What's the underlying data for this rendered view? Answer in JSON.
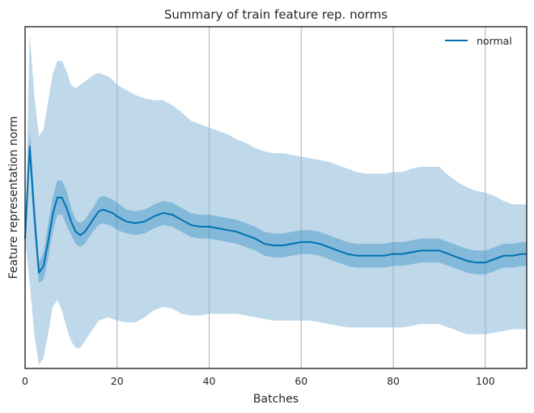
{
  "chart_data": {
    "type": "line",
    "title": "Summary of train feature rep. norms",
    "xlabel": "Batches",
    "ylabel": "Feature representation norm",
    "xlim": [
      0,
      109
    ],
    "ylim": [
      0,
      1
    ],
    "x_ticks": [
      0,
      20,
      40,
      60,
      80,
      100
    ],
    "y_ticks": [],
    "grid": "vertical",
    "legend_position": "top-right",
    "colors": {
      "line": "#0072b2",
      "inner_band": "#0072b2",
      "outer_band": "#7fb3d5",
      "grid": "#b0b0b0",
      "frame": "#262626"
    },
    "series": [
      {
        "name": "normal",
        "x": [
          0,
          1,
          2,
          3,
          4,
          5,
          6,
          7,
          8,
          9,
          10,
          11,
          12,
          13,
          14,
          15,
          16,
          17,
          18,
          19,
          20,
          22,
          24,
          26,
          28,
          30,
          32,
          34,
          36,
          38,
          40,
          42,
          44,
          46,
          48,
          50,
          52,
          54,
          56,
          58,
          60,
          62,
          64,
          66,
          68,
          70,
          72,
          74,
          76,
          78,
          80,
          82,
          84,
          86,
          88,
          90,
          92,
          94,
          96,
          98,
          100,
          102,
          104,
          106,
          108,
          109
        ],
        "mean": [
          0.38,
          0.65,
          0.45,
          0.28,
          0.3,
          0.37,
          0.45,
          0.5,
          0.5,
          0.47,
          0.43,
          0.4,
          0.39,
          0.4,
          0.42,
          0.44,
          0.46,
          0.465,
          0.46,
          0.455,
          0.445,
          0.43,
          0.425,
          0.43,
          0.445,
          0.455,
          0.45,
          0.435,
          0.42,
          0.415,
          0.415,
          0.41,
          0.405,
          0.4,
          0.39,
          0.38,
          0.365,
          0.36,
          0.36,
          0.365,
          0.37,
          0.37,
          0.365,
          0.355,
          0.345,
          0.335,
          0.33,
          0.33,
          0.33,
          0.33,
          0.335,
          0.335,
          0.34,
          0.345,
          0.345,
          0.345,
          0.335,
          0.325,
          0.315,
          0.31,
          0.31,
          0.32,
          0.33,
          0.33,
          0.335,
          0.335
        ],
        "ci_low": [
          0.36,
          0.6,
          0.4,
          0.25,
          0.26,
          0.32,
          0.4,
          0.45,
          0.45,
          0.42,
          0.39,
          0.365,
          0.355,
          0.365,
          0.385,
          0.405,
          0.42,
          0.425,
          0.42,
          0.415,
          0.405,
          0.395,
          0.39,
          0.395,
          0.41,
          0.42,
          0.415,
          0.4,
          0.385,
          0.38,
          0.38,
          0.375,
          0.37,
          0.365,
          0.355,
          0.345,
          0.33,
          0.325,
          0.325,
          0.33,
          0.335,
          0.335,
          0.33,
          0.32,
          0.31,
          0.3,
          0.295,
          0.295,
          0.295,
          0.295,
          0.3,
          0.3,
          0.305,
          0.31,
          0.31,
          0.31,
          0.3,
          0.29,
          0.28,
          0.275,
          0.275,
          0.285,
          0.295,
          0.295,
          0.3,
          0.3
        ],
        "ci_high": [
          0.4,
          0.7,
          0.5,
          0.31,
          0.34,
          0.42,
          0.5,
          0.55,
          0.55,
          0.52,
          0.47,
          0.435,
          0.425,
          0.435,
          0.455,
          0.475,
          0.5,
          0.505,
          0.5,
          0.495,
          0.485,
          0.465,
          0.46,
          0.465,
          0.48,
          0.49,
          0.485,
          0.47,
          0.455,
          0.45,
          0.45,
          0.445,
          0.44,
          0.435,
          0.425,
          0.415,
          0.4,
          0.395,
          0.395,
          0.4,
          0.405,
          0.405,
          0.4,
          0.39,
          0.38,
          0.37,
          0.365,
          0.365,
          0.365,
          0.365,
          0.37,
          0.37,
          0.375,
          0.38,
          0.38,
          0.38,
          0.37,
          0.36,
          0.35,
          0.345,
          0.345,
          0.355,
          0.365,
          0.365,
          0.37,
          0.37
        ],
        "range_low": [
          0.38,
          0.25,
          0.1,
          0.01,
          0.03,
          0.1,
          0.18,
          0.2,
          0.17,
          0.12,
          0.08,
          0.06,
          0.06,
          0.08,
          0.1,
          0.12,
          0.14,
          0.145,
          0.15,
          0.145,
          0.14,
          0.135,
          0.135,
          0.15,
          0.17,
          0.18,
          0.175,
          0.16,
          0.155,
          0.155,
          0.16,
          0.16,
          0.16,
          0.16,
          0.155,
          0.15,
          0.145,
          0.14,
          0.14,
          0.14,
          0.14,
          0.14,
          0.135,
          0.13,
          0.125,
          0.12,
          0.12,
          0.12,
          0.12,
          0.12,
          0.12,
          0.12,
          0.125,
          0.13,
          0.13,
          0.13,
          0.12,
          0.11,
          0.1,
          0.1,
          0.1,
          0.105,
          0.11,
          0.115,
          0.115,
          0.115
        ],
        "range_high": [
          0.38,
          0.98,
          0.8,
          0.68,
          0.7,
          0.78,
          0.86,
          0.9,
          0.9,
          0.87,
          0.83,
          0.82,
          0.83,
          0.84,
          0.85,
          0.86,
          0.865,
          0.86,
          0.855,
          0.845,
          0.83,
          0.815,
          0.8,
          0.79,
          0.785,
          0.785,
          0.77,
          0.75,
          0.725,
          0.715,
          0.705,
          0.695,
          0.685,
          0.67,
          0.66,
          0.645,
          0.635,
          0.63,
          0.63,
          0.625,
          0.62,
          0.615,
          0.61,
          0.605,
          0.595,
          0.585,
          0.575,
          0.57,
          0.57,
          0.57,
          0.575,
          0.575,
          0.585,
          0.59,
          0.59,
          0.59,
          0.565,
          0.545,
          0.53,
          0.52,
          0.515,
          0.505,
          0.49,
          0.48,
          0.48,
          0.48
        ]
      }
    ]
  }
}
